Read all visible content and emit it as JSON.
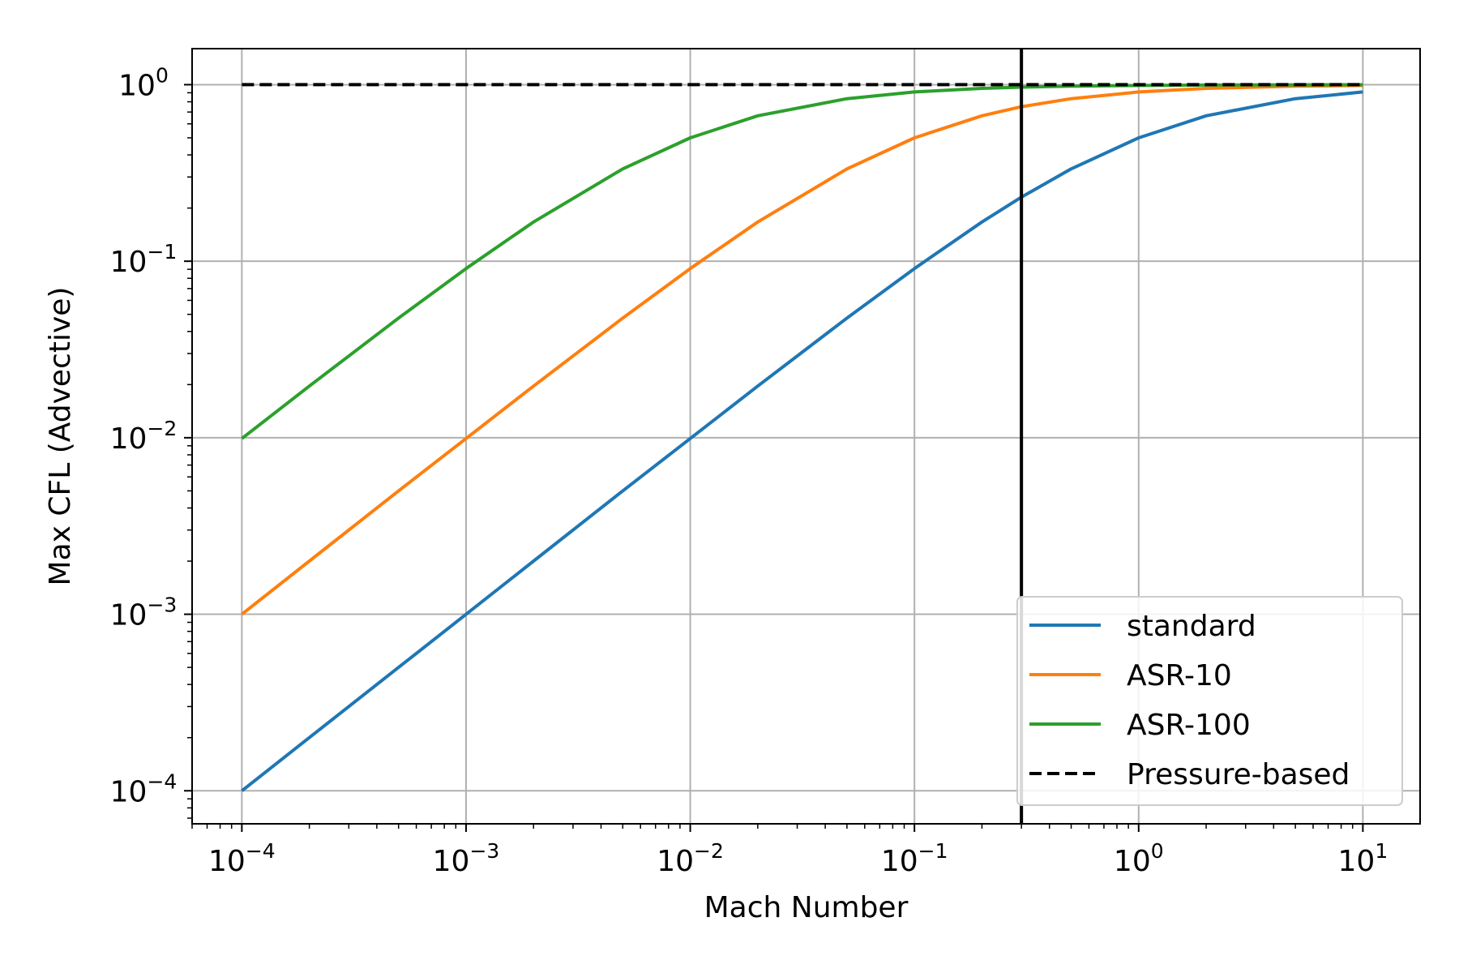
{
  "chart_data": {
    "type": "line",
    "title": "",
    "xlabel": "Mach Number",
    "ylabel": "Max CFL (Advective)",
    "xscale": "log",
    "yscale": "log",
    "xlim": [
      6e-05,
      18
    ],
    "ylim": [
      6.5e-05,
      1.6
    ],
    "grid": true,
    "legend_position": "lower-right",
    "x_ticks": [
      {
        "value": 0.0001,
        "base": "10",
        "exp": "−4"
      },
      {
        "value": 0.001,
        "base": "10",
        "exp": "−3"
      },
      {
        "value": 0.01,
        "base": "10",
        "exp": "−2"
      },
      {
        "value": 0.1,
        "base": "10",
        "exp": "−1"
      },
      {
        "value": 1,
        "base": "10",
        "exp": "0"
      },
      {
        "value": 10,
        "base": "10",
        "exp": "1"
      }
    ],
    "y_ticks": [
      {
        "value": 0.0001,
        "base": "10",
        "exp": "−4"
      },
      {
        "value": 0.001,
        "base": "10",
        "exp": "−3"
      },
      {
        "value": 0.01,
        "base": "10",
        "exp": "−2"
      },
      {
        "value": 0.1,
        "base": "10",
        "exp": "−1"
      },
      {
        "value": 1,
        "base": "10",
        "exp": "0"
      }
    ],
    "x": [
      0.0001,
      0.0002,
      0.0005,
      0.001,
      0.002,
      0.005,
      0.01,
      0.02,
      0.05,
      0.1,
      0.2,
      0.3,
      0.5,
      1,
      2,
      5,
      10
    ],
    "series": [
      {
        "name": "standard",
        "color": "#1f77b4",
        "linestyle": "solid",
        "values": [
          0.0001,
          0.0002,
          0.0005,
          0.001,
          0.002,
          0.005,
          0.0099,
          0.0196,
          0.0476,
          0.0909,
          0.1667,
          0.2308,
          0.3333,
          0.5,
          0.6667,
          0.8333,
          0.9091
        ]
      },
      {
        "name": "ASR-10",
        "color": "#ff7f0e",
        "linestyle": "solid",
        "values": [
          0.001,
          0.002,
          0.005,
          0.0099,
          0.0196,
          0.0476,
          0.0909,
          0.1667,
          0.3333,
          0.5,
          0.6667,
          0.75,
          0.8333,
          0.9091,
          0.9524,
          0.9804,
          0.9901
        ]
      },
      {
        "name": "ASR-100",
        "color": "#2ca02c",
        "linestyle": "solid",
        "values": [
          0.0099,
          0.0196,
          0.0476,
          0.0909,
          0.1667,
          0.3333,
          0.5,
          0.6667,
          0.8333,
          0.9091,
          0.9524,
          0.9677,
          0.9804,
          0.9901,
          0.995,
          0.998,
          0.999
        ]
      },
      {
        "name": "Pressure-based",
        "color": "#000000",
        "linestyle": "dashed",
        "values": [
          1,
          1,
          1,
          1,
          1,
          1,
          1,
          1,
          1,
          1,
          1,
          1,
          1,
          1,
          1,
          1,
          1
        ]
      }
    ],
    "vertical_line": {
      "x": 0.3,
      "color": "#000000"
    }
  }
}
